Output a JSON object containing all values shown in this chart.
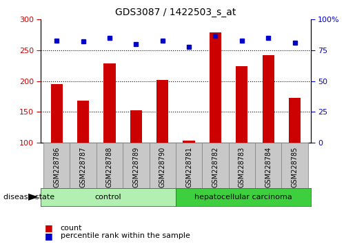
{
  "title": "GDS3087 / 1422503_s_at",
  "samples": [
    "GSM228786",
    "GSM228787",
    "GSM228788",
    "GSM228789",
    "GSM228790",
    "GSM228781",
    "GSM228782",
    "GSM228783",
    "GSM228784",
    "GSM228785"
  ],
  "counts": [
    195,
    168,
    229,
    153,
    202,
    104,
    279,
    224,
    242,
    173
  ],
  "percentiles": [
    83,
    82,
    85,
    80,
    83,
    78,
    87,
    83,
    85,
    81
  ],
  "ylim_left": [
    100,
    300
  ],
  "ylim_right": [
    0,
    100
  ],
  "yticks_left": [
    100,
    150,
    200,
    250,
    300
  ],
  "yticks_right": [
    0,
    25,
    50,
    75,
    100
  ],
  "bar_color": "#cc0000",
  "dot_color": "#0000cc",
  "control_color": "#b2f0b2",
  "carcinoma_color": "#3ecf3e",
  "tick_bg": "#c8c8c8",
  "tick_border": "#888888",
  "legend_bar_label": "count",
  "legend_dot_label": "percentile rank within the sample",
  "group_label": "disease state",
  "group_names": [
    "control",
    "hepatocellular carcinoma"
  ],
  "n_control": 5,
  "n_carcinoma": 5,
  "bar_width": 0.45,
  "dot_size": 5
}
